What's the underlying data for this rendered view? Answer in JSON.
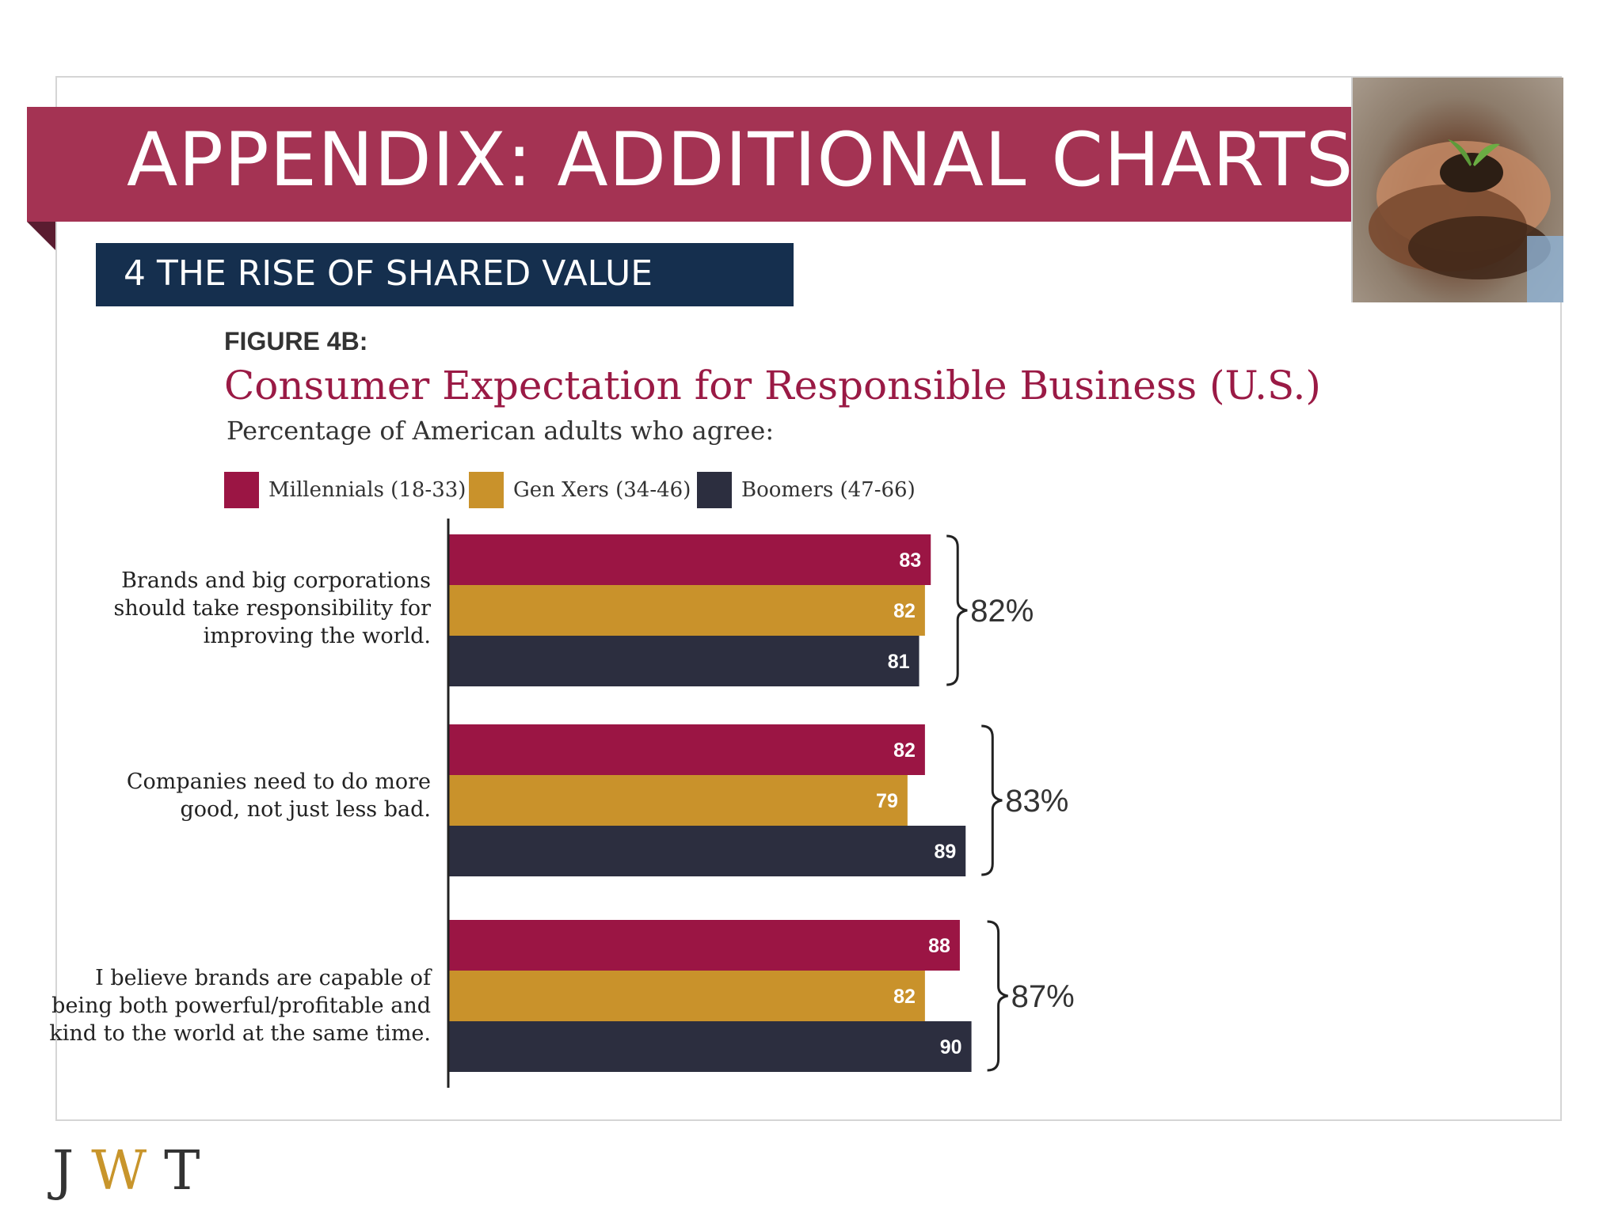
{
  "slide": {
    "title": "APPENDIX: ADDITIONAL CHARTS",
    "section": "4  THE RISE OF SHARED VALUE",
    "logo": [
      "J",
      "W",
      "T"
    ]
  },
  "figure": {
    "label": "FIGURE 4B:",
    "title": "Consumer Expectation for Responsible Business (U.S.)",
    "subtitle": "Percentage of American adults who agree:"
  },
  "colors": {
    "banner": "#a43353",
    "section_bar": "#152f4e",
    "millennials": "#9b1544",
    "genx": "#c9922b",
    "boomers": "#2c2e3f",
    "logo_accent": "#c8952b"
  },
  "chart_data": {
    "type": "bar",
    "orientation": "horizontal",
    "title": "Consumer Expectation for Responsible Business (U.S.)",
    "subtitle": "Percentage of American adults who agree:",
    "xlim": [
      0,
      100
    ],
    "grid": false,
    "legend_position": "top",
    "categories": [
      [
        "Brands and big corporations",
        "should take responsibility for",
        "improving the world."
      ],
      [
        "Companies need to do more",
        "good, not just less bad."
      ],
      [
        "I believe brands are capable of",
        "being both powerful/profitable and",
        "kind to the world at the same time."
      ]
    ],
    "series": [
      {
        "name": "Millennials (18-33)",
        "color": "#9b1544",
        "values": [
          83,
          82,
          88
        ]
      },
      {
        "name": "Gen Xers (34-46)",
        "color": "#c9922b",
        "values": [
          82,
          79,
          82
        ]
      },
      {
        "name": "Boomers (47-66)",
        "color": "#2c2e3f",
        "values": [
          81,
          89,
          90
        ]
      }
    ],
    "totals": [
      "82%",
      "83%",
      "87%"
    ]
  }
}
